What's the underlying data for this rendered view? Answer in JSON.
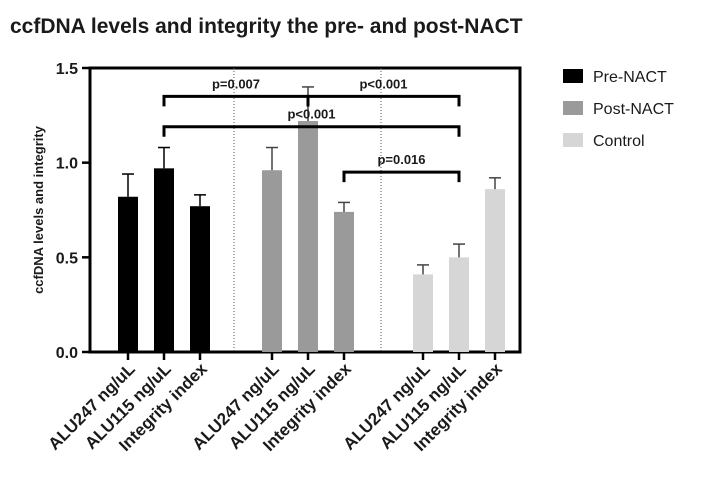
{
  "chart_data": {
    "type": "bar",
    "title": "ccfDNA levels and integrity the pre- and post-NACT",
    "xlabel": "",
    "ylabel": "ccfDNA levels and integrity",
    "ylim": [
      0,
      1.5
    ],
    "yticks": [
      "0.0",
      "0.5",
      "1.0",
      "1.5"
    ],
    "grid": false,
    "legend_position": "right",
    "categories": [
      "ALU247 ng/uL",
      "ALU115 ng/uL",
      "Integrity index"
    ],
    "series": [
      {
        "name": "Pre-NACT",
        "color": "#000000",
        "values": [
          0.82,
          0.97,
          0.77
        ],
        "errors": [
          0.12,
          0.11,
          0.06
        ]
      },
      {
        "name": "Post-NACT",
        "color": "#9a9a9a",
        "values": [
          0.96,
          1.22,
          0.74
        ],
        "errors": [
          0.12,
          0.18,
          0.05
        ]
      },
      {
        "name": "Control",
        "color": "#d6d6d6",
        "values": [
          0.41,
          0.5,
          0.86
        ],
        "errors": [
          0.05,
          0.07,
          0.06
        ]
      }
    ],
    "significance": [
      {
        "label": "p=0.007",
        "from": [
          0,
          1
        ],
        "to": [
          1,
          1
        ],
        "level": 1.35
      },
      {
        "label": "p<0.001",
        "from": [
          1,
          1
        ],
        "to": [
          2,
          1
        ],
        "level": 1.35
      },
      {
        "label": "p<0.001",
        "from": [
          0,
          1
        ],
        "to": [
          2,
          1
        ],
        "level": 1.19
      },
      {
        "label": "p=0.016",
        "from": [
          1,
          2
        ],
        "to": [
          2,
          1
        ],
        "level": 0.95
      }
    ]
  }
}
